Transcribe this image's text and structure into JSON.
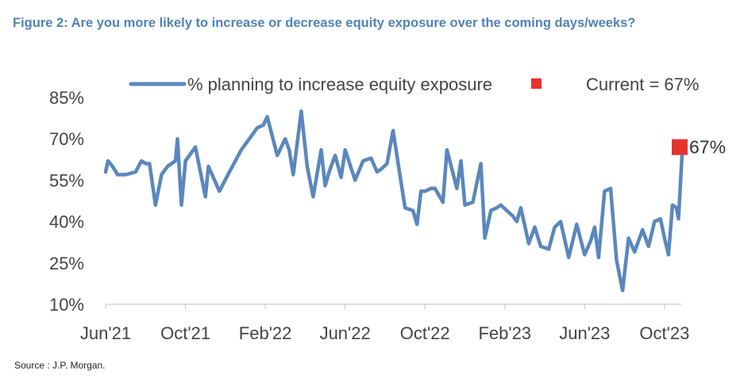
{
  "figure": {
    "title": "Figure 2: Are you more likely to increase or decrease equity exposure over the coming days/weeks?",
    "source": "Source : J.P. Morgan."
  },
  "colors": {
    "line": "#5a87bd",
    "current_marker": "#e6322e",
    "title": "#4f83b6",
    "text": "#444444"
  },
  "chart_data": {
    "type": "line",
    "title": "",
    "xlabel": "",
    "ylabel": "",
    "ylim": [
      10,
      85
    ],
    "yticks": [
      10,
      25,
      40,
      55,
      70,
      85
    ],
    "ytick_labels": [
      "10%",
      "25%",
      "40%",
      "55%",
      "70%",
      "85%"
    ],
    "xlim": [
      0,
      29
    ],
    "xticks": [
      0,
      4,
      8,
      12,
      16,
      20,
      24,
      28
    ],
    "xtick_labels": [
      "Jun'21",
      "Oct'21",
      "Feb'22",
      "Jun'22",
      "Oct'22",
      "Feb'23",
      "Jun'23",
      "Oct'23"
    ],
    "grid": false,
    "legend_position": "top",
    "series": [
      {
        "name": "% planning to increase equity exposure",
        "x": [
          0,
          0.12,
          0.35,
          0.6,
          1.0,
          1.5,
          1.8,
          2.0,
          2.2,
          2.5,
          2.8,
          2.9,
          3.1,
          3.5,
          3.6,
          3.8,
          4.0,
          4.5,
          5.0,
          5.15,
          5.4,
          5.7,
          6.2,
          6.8,
          7.2,
          7.6,
          7.9,
          8.1,
          8.6,
          9.0,
          9.2,
          9.4,
          9.8,
          10.1,
          10.4,
          10.8,
          11.0,
          11.2,
          11.5,
          11.8,
          12.0,
          12.5,
          12.9,
          13.3,
          13.6,
          13.8,
          14.1,
          14.4,
          15.0,
          15.4,
          15.6,
          15.8,
          16.0,
          16.3,
          16.5,
          16.9,
          17.1,
          17.6,
          17.8,
          18.0,
          18.4,
          18.8,
          19.0,
          19.3,
          19.6,
          19.8,
          20.1,
          20.4,
          20.6,
          20.8,
          21.2,
          21.5,
          21.8,
          22.2,
          22.5,
          22.8,
          23.2,
          23.6,
          24.0,
          24.3,
          24.5,
          24.7,
          25.0,
          25.3,
          25.6,
          25.9,
          26.2,
          26.5,
          26.9,
          27.2,
          27.5,
          27.8,
          28.0,
          28.2,
          28.4,
          28.6,
          28.7,
          28.9
        ],
        "values": [
          58,
          62,
          60,
          57,
          57,
          58,
          62,
          61,
          61,
          46,
          57,
          58,
          60,
          62,
          70,
          46,
          62,
          67,
          49,
          60,
          56,
          51,
          58,
          66,
          70,
          74,
          75,
          78,
          64,
          70,
          66,
          57,
          80,
          60,
          49,
          66,
          53,
          58,
          64,
          56,
          66,
          55,
          62,
          63,
          58,
          59,
          61,
          73,
          45,
          44,
          39,
          51,
          51,
          52,
          52,
          47,
          66,
          52,
          62,
          46,
          47,
          61,
          34,
          44,
          45,
          46,
          44,
          42,
          40,
          45,
          32,
          38,
          31,
          30,
          38,
          40,
          27,
          39,
          28,
          33,
          38,
          27,
          51,
          52,
          26,
          15,
          34,
          29,
          37,
          31,
          40,
          41,
          34,
          28,
          46,
          45,
          41,
          67
        ],
        "color": "#5a87bd"
      }
    ],
    "current": {
      "x": 29,
      "value": 67,
      "label": "Current = 67%",
      "data_label": "67%"
    }
  }
}
